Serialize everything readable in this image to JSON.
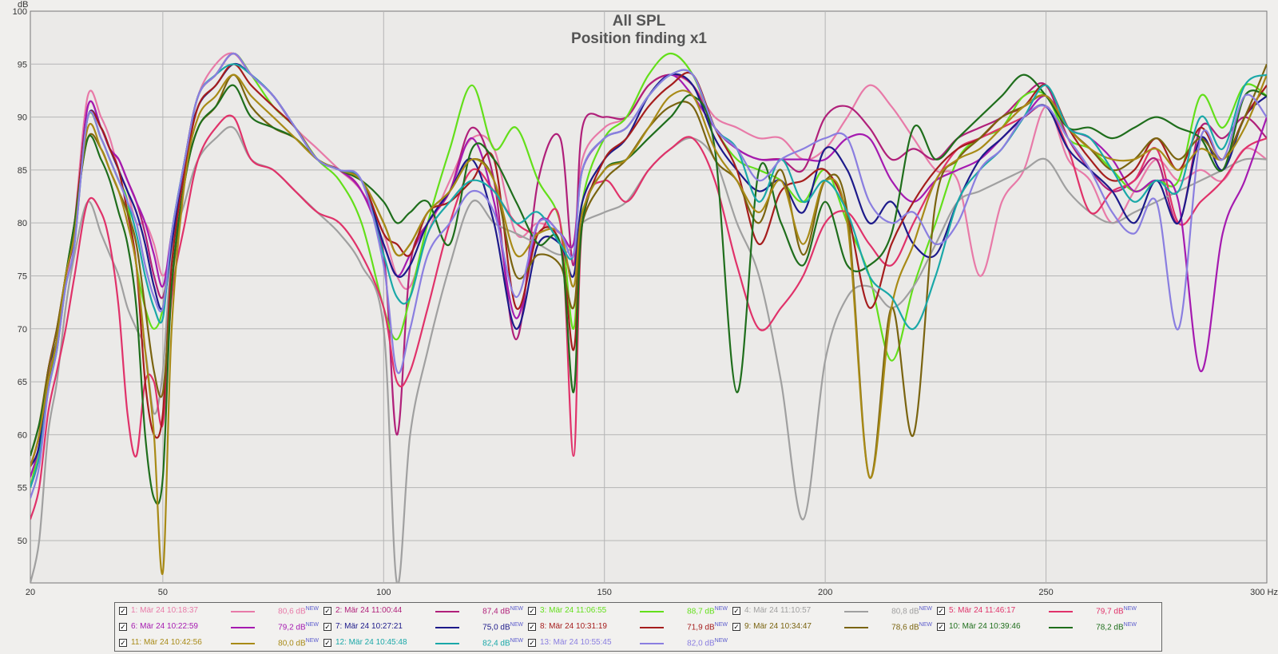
{
  "chart_data": {
    "type": "line",
    "title": "All SPL",
    "subtitle": "Position finding x1",
    "ylabel": "dB",
    "xunit": "Hz",
    "xlim": [
      20,
      300
    ],
    "ylim": [
      46,
      100
    ],
    "x_ticks": [
      20,
      50,
      100,
      150,
      200,
      250,
      300
    ],
    "x_tick_labels": [
      "20",
      "50",
      "100",
      "150",
      "200",
      "250",
      "300 Hz"
    ],
    "y_ticks": [
      50,
      55,
      60,
      65,
      70,
      75,
      80,
      85,
      90,
      95,
      100
    ],
    "y_tick_labels": [
      "50",
      "55",
      "60",
      "65",
      "70",
      "75",
      "80",
      "85",
      "90",
      "95",
      "100"
    ],
    "grid": true,
    "x": [
      20,
      22,
      24,
      26,
      28,
      30,
      33,
      36,
      38,
      40,
      42,
      44,
      46,
      48,
      50,
      52,
      55,
      58,
      62,
      66,
      70,
      75,
      80,
      85,
      90,
      95,
      100,
      103,
      106,
      110,
      115,
      120,
      125,
      130,
      135,
      140,
      143,
      145,
      150,
      155,
      160,
      165,
      170,
      175,
      180,
      185,
      190,
      195,
      200,
      205,
      210,
      215,
      220,
      225,
      230,
      235,
      240,
      245,
      250,
      255,
      260,
      265,
      270,
      275,
      280,
      285,
      290,
      295,
      300
    ],
    "series": [
      {
        "name": "1: Mär 24 10:18:37",
        "display": "80,6 dB",
        "color": "#e87aa8",
        "values": [
          57,
          60,
          66,
          70,
          74,
          80,
          92,
          90,
          88,
          85,
          83,
          80,
          80,
          78,
          75,
          78,
          86,
          92,
          95,
          96,
          94,
          92,
          89,
          87,
          85,
          83,
          79,
          75,
          74,
          79,
          84,
          88,
          87,
          79,
          80,
          79,
          78,
          86,
          89,
          90,
          93,
          94,
          93,
          90,
          89,
          88,
          88,
          86,
          87,
          90,
          93,
          91,
          88,
          85,
          84,
          75,
          82,
          85,
          91,
          86,
          84,
          80,
          83,
          86,
          84,
          85,
          84,
          87,
          86
        ]
      },
      {
        "name": "2: Mär 24 11:00:44",
        "display": "87,4 dB",
        "color": "#b0207a",
        "values": [
          55,
          58,
          65,
          69,
          75,
          79,
          91,
          89,
          87,
          86,
          84,
          82,
          79,
          75,
          73,
          78,
          86,
          92,
          94,
          96,
          94,
          92,
          89,
          86,
          85,
          83,
          77,
          60,
          76,
          80,
          83,
          89,
          84,
          69,
          84,
          88,
          76,
          89,
          90,
          90,
          93,
          94,
          93,
          89,
          87,
          86,
          86,
          85,
          90,
          91,
          89,
          86,
          87,
          86,
          88,
          89,
          90,
          92,
          93,
          88,
          85,
          83,
          84,
          86,
          80,
          89,
          88,
          90,
          88
        ]
      },
      {
        "name": "3: Mär 24 11:06:55",
        "display": "88,7 dB",
        "color": "#63df1a",
        "values": [
          55,
          59,
          65,
          68,
          75,
          79,
          90,
          88,
          86,
          84,
          82,
          76,
          72,
          70,
          72,
          79,
          86,
          92,
          94,
          96,
          94,
          91,
          89,
          86,
          84,
          80,
          72,
          69,
          73,
          80,
          87,
          93,
          87,
          89,
          84,
          80,
          70,
          82,
          88,
          90,
          94,
          96,
          94,
          89,
          86,
          85,
          84,
          82,
          85,
          80,
          75,
          67,
          74,
          80,
          86,
          88,
          89,
          92,
          92,
          88,
          87,
          85,
          83,
          84,
          84,
          92,
          89,
          93,
          92
        ]
      },
      {
        "name": "4: Mär 24 11:10:57",
        "display": "80,8 dB",
        "color": "#a0a0a0",
        "values": [
          46,
          50,
          60,
          65,
          72,
          77,
          82,
          79,
          77,
          75,
          72,
          70,
          68,
          62,
          66,
          77,
          82,
          86,
          88,
          89,
          86,
          85,
          83,
          81,
          79,
          76,
          70,
          46,
          60,
          68,
          76,
          82,
          80,
          79,
          78,
          77,
          78,
          80,
          81,
          82,
          85,
          87,
          88,
          86,
          80,
          75,
          65,
          52,
          67,
          73,
          74,
          72,
          74,
          78,
          82,
          83,
          84,
          85,
          86,
          83,
          81,
          80,
          81,
          82,
          83,
          84,
          85,
          86,
          86
        ]
      },
      {
        "name": "5: Mär 24 11:46:17",
        "display": "79,7 dB",
        "color": "#e0326a",
        "values": [
          52,
          55,
          62,
          66,
          70,
          75,
          82,
          81,
          78,
          72,
          62,
          58,
          65,
          65,
          61,
          73,
          80,
          86,
          89,
          90,
          86,
          85,
          83,
          81,
          80,
          77,
          72,
          65,
          66,
          72,
          80,
          85,
          83,
          80,
          79,
          80,
          58,
          80,
          84,
          82,
          85,
          87,
          88,
          84,
          76,
          70,
          72,
          75,
          80,
          81,
          78,
          76,
          80,
          84,
          87,
          88,
          89,
          90,
          91,
          87,
          81,
          83,
          84,
          87,
          80,
          82,
          84,
          87,
          88
        ]
      },
      {
        "name": "6: Mär 24 10:22:59",
        "display": "79,2 dB",
        "color": "#a51ab0",
        "values": [
          56,
          59,
          65,
          69,
          75,
          79,
          91,
          89,
          87,
          86,
          84,
          82,
          80,
          77,
          74,
          79,
          86,
          92,
          94,
          96,
          94,
          92,
          89,
          86,
          85,
          83,
          78,
          75,
          77,
          80,
          83,
          88,
          82,
          71,
          80,
          79,
          78,
          85,
          88,
          89,
          92,
          94,
          92,
          89,
          87,
          86,
          86,
          86,
          86,
          88,
          88,
          84,
          82,
          84,
          85,
          86,
          88,
          90,
          92,
          89,
          88,
          86,
          83,
          84,
          82,
          66,
          79,
          84,
          90
        ]
      },
      {
        "name": "7: Mär 24 10:27:21",
        "display": "75,0 dB",
        "color": "#1d1a8a",
        "values": [
          57,
          59,
          66,
          69,
          75,
          79,
          90,
          89,
          87,
          85,
          83,
          81,
          78,
          74,
          72,
          78,
          86,
          91,
          93,
          95,
          94,
          92,
          89,
          86,
          85,
          84,
          78,
          75,
          76,
          80,
          83,
          86,
          80,
          70,
          78,
          78,
          75,
          82,
          86,
          88,
          92,
          94,
          93,
          88,
          85,
          83,
          84,
          81,
          87,
          85,
          80,
          82,
          78,
          77,
          82,
          86,
          88,
          90,
          91,
          87,
          85,
          83,
          80,
          84,
          80,
          88,
          85,
          90,
          92
        ]
      },
      {
        "name": "8: Mär 24 10:31:19",
        "display": "71,9 dB",
        "color": "#a51d1d",
        "values": [
          57,
          60,
          66,
          70,
          75,
          80,
          90,
          89,
          87,
          85,
          81,
          76,
          65,
          60,
          62,
          76,
          85,
          91,
          93,
          95,
          93,
          91,
          89,
          86,
          85,
          84,
          79,
          78,
          77,
          81,
          82,
          84,
          86,
          72,
          79,
          78,
          68,
          80,
          86,
          88,
          91,
          93,
          94,
          89,
          85,
          78,
          83,
          84,
          85,
          81,
          72,
          78,
          82,
          85,
          87,
          88,
          90,
          91,
          93,
          89,
          86,
          84,
          85,
          88,
          85,
          89,
          86,
          90,
          93
        ]
      },
      {
        "name": "9: Mär 24 10:34:47",
        "display": "78,6 dB",
        "color": "#7a6410",
        "values": [
          58,
          61,
          66,
          70,
          75,
          80,
          88,
          87,
          85,
          83,
          81,
          78,
          72,
          66,
          64,
          74,
          84,
          89,
          91,
          94,
          91,
          89,
          88,
          86,
          85,
          84,
          80,
          77,
          78,
          81,
          83,
          86,
          84,
          75,
          77,
          76,
          72,
          80,
          84,
          86,
          89,
          91,
          91,
          86,
          84,
          80,
          85,
          77,
          84,
          81,
          56,
          72,
          60,
          82,
          86,
          88,
          90,
          91,
          92,
          89,
          87,
          85,
          86,
          88,
          86,
          88,
          86,
          90,
          95
        ]
      },
      {
        "name": "10: Mär 24 10:39:46",
        "display": "78,2 dB",
        "color": "#1f6e1c",
        "values": [
          58,
          61,
          65,
          69,
          75,
          80,
          88,
          86,
          84,
          81,
          78,
          72,
          60,
          54,
          56,
          74,
          84,
          89,
          91,
          93,
          90,
          89,
          88,
          86,
          85,
          84,
          82,
          80,
          81,
          82,
          78,
          87,
          86,
          82,
          78,
          78,
          64,
          80,
          85,
          86,
          88,
          90,
          92,
          87,
          64,
          85,
          80,
          76,
          82,
          76,
          76,
          79,
          89,
          86,
          88,
          90,
          92,
          94,
          92,
          89,
          89,
          88,
          89,
          90,
          89,
          88,
          85,
          92,
          92
        ]
      },
      {
        "name": "11: Mär 24 10:42:56",
        "display": "80,0 dB",
        "color": "#a88a16",
        "values": [
          57,
          60,
          65,
          69,
          75,
          79,
          89,
          87,
          85,
          83,
          80,
          76,
          68,
          60,
          47,
          70,
          84,
          90,
          92,
          94,
          92,
          90,
          88,
          86,
          85,
          84,
          80,
          77,
          78,
          81,
          83,
          86,
          84,
          77,
          79,
          79,
          74,
          81,
          85,
          86,
          89,
          92,
          92,
          87,
          84,
          81,
          84,
          78,
          84,
          80,
          56,
          72,
          78,
          84,
          86,
          87,
          89,
          91,
          92,
          89,
          87,
          86,
          86,
          87,
          85,
          87,
          86,
          89,
          94
        ]
      },
      {
        "name": "12: Mär 24 10:45:48",
        "display": "82,4 dB",
        "color": "#1aa8a8",
        "values": [
          55,
          58,
          64,
          68,
          74,
          78,
          90,
          88,
          86,
          84,
          82,
          79,
          75,
          72,
          71,
          79,
          86,
          92,
          94,
          95,
          94,
          92,
          89,
          86,
          85,
          84,
          77,
          73,
          73,
          79,
          82,
          84,
          83,
          80,
          81,
          78,
          77,
          85,
          88,
          89,
          92,
          94,
          94,
          89,
          87,
          82,
          86,
          82,
          84,
          81,
          75,
          73,
          70,
          75,
          82,
          85,
          87,
          90,
          93,
          89,
          88,
          85,
          82,
          84,
          83,
          90,
          87,
          93,
          94
        ]
      },
      {
        "name": "13: Mär 24 10:55:45",
        "display": "82,0 dB",
        "color": "#8a7ee0",
        "values": [
          54,
          57,
          64,
          68,
          74,
          78,
          90,
          88,
          86,
          84,
          82,
          80,
          76,
          73,
          72,
          79,
          86,
          92,
          94,
          96,
          94,
          92,
          89,
          86,
          85,
          84,
          76,
          66,
          70,
          77,
          80,
          83,
          81,
          73,
          80,
          79,
          77,
          85,
          88,
          89,
          92,
          94,
          94,
          89,
          87,
          84,
          86,
          87,
          88,
          88,
          82,
          80,
          81,
          78,
          80,
          85,
          87,
          90,
          91,
          88,
          85,
          81,
          79,
          82,
          70,
          88,
          86,
          92,
          90
        ]
      }
    ]
  },
  "legend": [
    {
      "name": "1: Mär 24 10:18:37",
      "value": "80,6 dB",
      "badge": "NEW",
      "color": "#e87aa8"
    },
    {
      "name": "2: Mär 24 11:00:44",
      "value": "87,4 dB",
      "badge": "NEW",
      "color": "#b0207a"
    },
    {
      "name": "3: Mär 24 11:06:55",
      "value": "88,7 dB",
      "badge": "NEW",
      "color": "#63df1a"
    },
    {
      "name": "4: Mär 24 11:10:57",
      "value": "80,8 dB",
      "badge": "NEW",
      "color": "#a0a0a0"
    },
    {
      "name": "5: Mär 24 11:46:17",
      "value": "79,7 dB",
      "badge": "NEW",
      "color": "#e0326a"
    },
    {
      "name": "6: Mär 24 10:22:59",
      "value": "79,2 dB",
      "badge": "NEW",
      "color": "#a51ab0"
    },
    {
      "name": "7: Mär 24 10:27:21",
      "value": "75,0 dB",
      "badge": "NEW",
      "color": "#1d1a8a"
    },
    {
      "name": "8: Mär 24 10:31:19",
      "value": "71,9 dB",
      "badge": "NEW",
      "color": "#a51d1d"
    },
    {
      "name": "9: Mär 24 10:34:47",
      "value": "78,6 dB",
      "badge": "NEW",
      "color": "#7a6410"
    },
    {
      "name": "10: Mär 24 10:39:46",
      "value": "78,2 dB",
      "badge": "NEW",
      "color": "#1f6e1c"
    },
    {
      "name": "11: Mär 24 10:42:56",
      "value": "80,0 dB",
      "badge": "NEW",
      "color": "#a88a16"
    },
    {
      "name": "12: Mär 24 10:45:48",
      "value": "82,4 dB",
      "badge": "NEW",
      "color": "#1aa8a8"
    },
    {
      "name": "13: Mär 24 10:55:45",
      "value": "82,0 dB",
      "badge": "NEW",
      "color": "#8a7ee0"
    }
  ]
}
